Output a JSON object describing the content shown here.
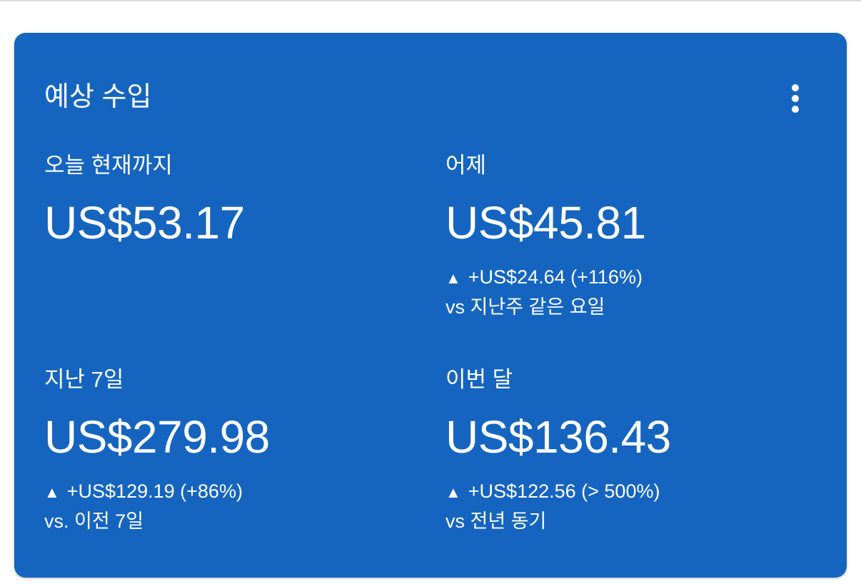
{
  "card": {
    "title": "예상 수입",
    "menu_icon": "more-vert-icon",
    "background_color": "#1565C0",
    "metrics": [
      {
        "label": "오늘 현재까지",
        "value": "US$53.17"
      },
      {
        "label": "어제",
        "value": "US$45.81",
        "trend_icon": "triangle-up-icon",
        "trend_symbol": "▲",
        "change": "+US$24.64 (+116%)",
        "comparison": "vs 지난주 같은 요일"
      },
      {
        "label": "지난 7일",
        "value": "US$279.98",
        "trend_icon": "triangle-up-icon",
        "trend_symbol": "▲",
        "change": "+US$129.19 (+86%)",
        "comparison": "vs. 이전 7일"
      },
      {
        "label": "이번 달",
        "value": "US$136.43",
        "trend_icon": "triangle-up-icon",
        "trend_symbol": "▲",
        "change": "+US$122.56 (> 500%)",
        "comparison": "vs 전년 동기"
      }
    ]
  }
}
